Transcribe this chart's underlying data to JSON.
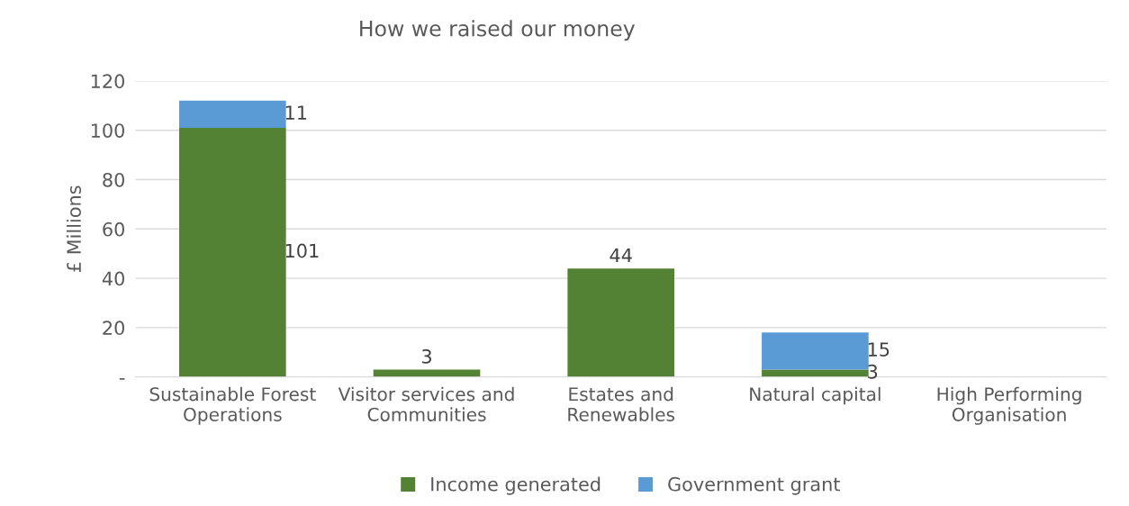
{
  "chart_data": {
    "type": "bar",
    "stacked": true,
    "title": "How we raised our money",
    "ylabel": "£ Millions",
    "categories": [
      "Sustainable Forest\nOperations",
      "Visitor services and\nCommunities",
      "Estates and\nRenewables",
      "Natural capital",
      "High Performing\nOrganisation"
    ],
    "series": [
      {
        "name": "Income generated",
        "color": "#548235",
        "values": [
          101,
          3,
          44,
          3,
          null
        ]
      },
      {
        "name": "Government grant",
        "color": "#5b9bd5",
        "values": [
          11,
          null,
          null,
          15,
          null
        ]
      }
    ],
    "ylim": [
      0,
      120
    ],
    "yticks": [
      {
        "value": 0,
        "label": "-"
      },
      20,
      40,
      60,
      80,
      100,
      120
    ],
    "grid": "y",
    "legend": "bottom",
    "data_labels": true
  }
}
